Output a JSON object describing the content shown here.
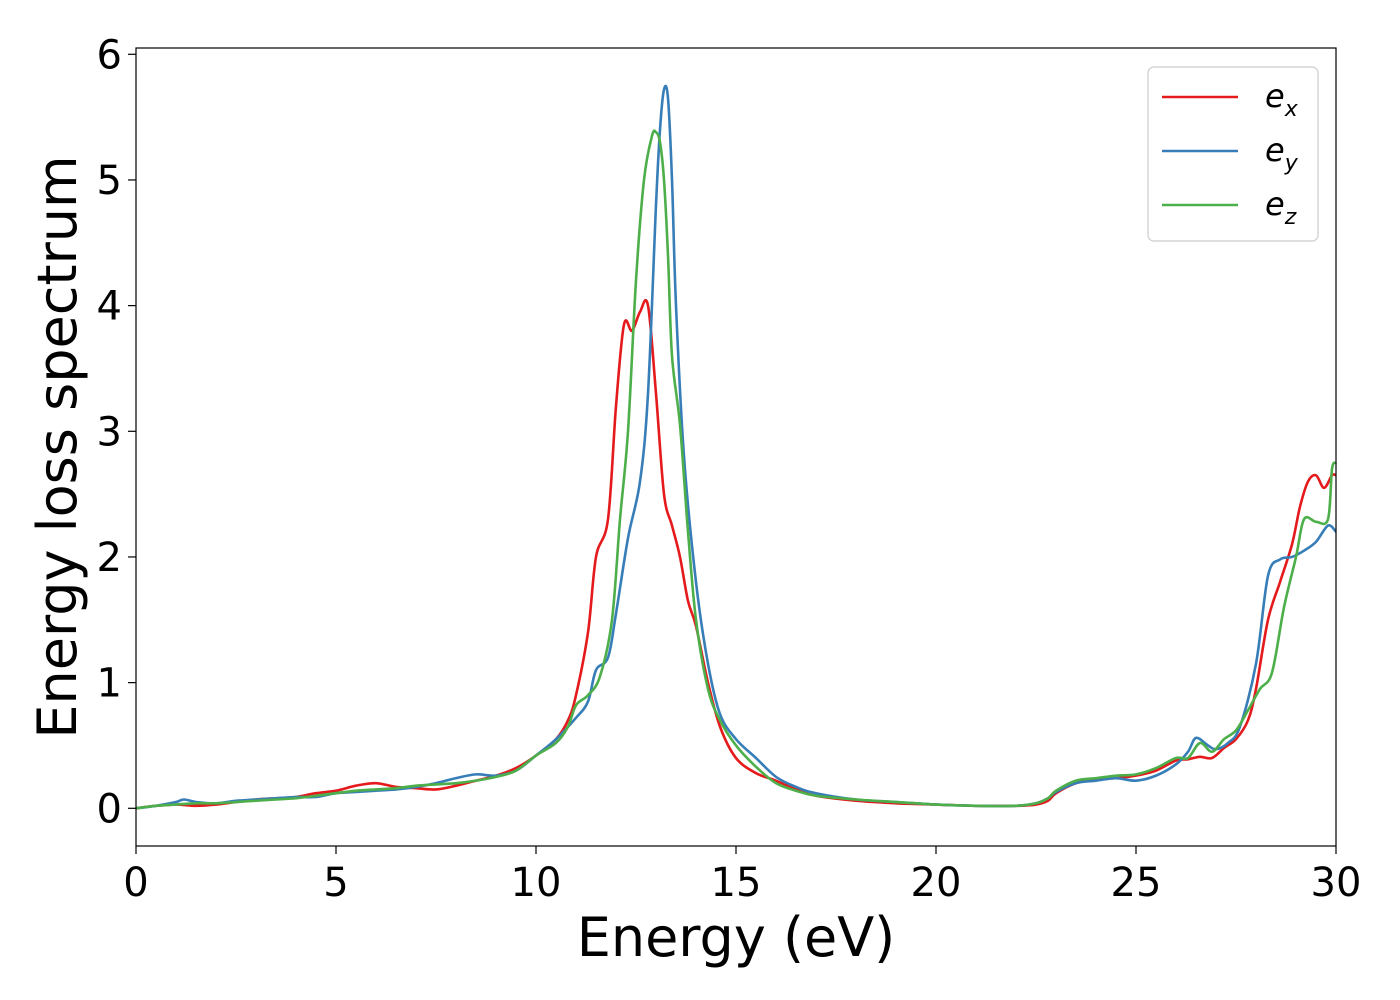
{
  "chart_data": {
    "type": "line",
    "xlabel": "Energy (eV)",
    "ylabel": "Energy loss spectrum",
    "xlim": [
      0,
      30
    ],
    "ylim": [
      -0.3,
      6.05
    ],
    "xticks": [
      0,
      5,
      10,
      15,
      20,
      25,
      30
    ],
    "yticks": [
      0,
      1,
      2,
      3,
      4,
      5,
      6
    ],
    "grid": false,
    "legend_position": "top-right",
    "series": [
      {
        "name": "e_x",
        "label_base": "e",
        "label_sub": "x",
        "color": "#e41a1c",
        "x": [
          0,
          0.5,
          1,
          1.5,
          2,
          2.5,
          3,
          3.5,
          4,
          4.5,
          5,
          5.5,
          6,
          6.5,
          7,
          7.5,
          8,
          8.5,
          9,
          9.5,
          10,
          10.5,
          10.8,
          11,
          11.3,
          11.5,
          11.8,
          12,
          12.2,
          12.4,
          12.6,
          12.8,
          13,
          13.2,
          13.4,
          13.6,
          13.8,
          14,
          14.3,
          14.6,
          15,
          15.5,
          16,
          16.5,
          17,
          18,
          19,
          20,
          21,
          22,
          22.5,
          22.8,
          23,
          23.5,
          24,
          24.5,
          25,
          25.5,
          26,
          26.3,
          26.6,
          26.9,
          27.2,
          27.5,
          27.8,
          28,
          28.3,
          28.6,
          28.9,
          29.1,
          29.3,
          29.5,
          29.7,
          29.9,
          30
        ],
        "y": [
          0,
          0.02,
          0.03,
          0.02,
          0.03,
          0.05,
          0.07,
          0.08,
          0.09,
          0.12,
          0.14,
          0.18,
          0.2,
          0.17,
          0.16,
          0.15,
          0.18,
          0.22,
          0.26,
          0.32,
          0.42,
          0.55,
          0.7,
          0.9,
          1.4,
          2.0,
          2.3,
          3.2,
          3.85,
          3.8,
          3.95,
          4.0,
          3.3,
          2.5,
          2.25,
          2.0,
          1.65,
          1.45,
          1.0,
          0.65,
          0.4,
          0.28,
          0.22,
          0.15,
          0.1,
          0.06,
          0.04,
          0.03,
          0.02,
          0.02,
          0.03,
          0.06,
          0.12,
          0.2,
          0.23,
          0.24,
          0.26,
          0.3,
          0.38,
          0.39,
          0.41,
          0.4,
          0.48,
          0.55,
          0.7,
          0.95,
          1.5,
          1.8,
          2.1,
          2.4,
          2.6,
          2.65,
          2.55,
          2.65,
          2.65
        ]
      },
      {
        "name": "e_y",
        "label_base": "e",
        "label_sub": "y",
        "color": "#377eb8",
        "x": [
          0,
          0.5,
          1,
          1.2,
          1.5,
          2,
          2.5,
          3,
          3.5,
          4,
          4.5,
          5,
          5.5,
          6,
          6.5,
          7,
          7.5,
          8,
          8.5,
          9,
          9.5,
          10,
          10.5,
          11,
          11.3,
          11.5,
          11.8,
          12,
          12.3,
          12.6,
          12.8,
          13,
          13.1,
          13.2,
          13.3,
          13.4,
          13.5,
          13.7,
          14,
          14.3,
          14.6,
          15,
          15.5,
          16,
          16.5,
          17,
          18,
          19,
          20,
          21,
          22,
          22.5,
          22.8,
          23,
          23.5,
          24,
          24.5,
          25,
          25.5,
          26,
          26.3,
          26.5,
          26.8,
          27,
          27.3,
          27.6,
          28,
          28.3,
          28.6,
          28.9,
          29.2,
          29.5,
          29.8,
          30
        ],
        "y": [
          0,
          0.02,
          0.05,
          0.07,
          0.05,
          0.04,
          0.06,
          0.07,
          0.08,
          0.09,
          0.09,
          0.12,
          0.13,
          0.14,
          0.15,
          0.17,
          0.2,
          0.24,
          0.27,
          0.26,
          0.3,
          0.42,
          0.55,
          0.72,
          0.85,
          1.1,
          1.2,
          1.55,
          2.15,
          2.6,
          3.3,
          4.8,
          5.4,
          5.72,
          5.65,
          5.0,
          4.0,
          2.8,
          1.8,
          1.15,
          0.75,
          0.55,
          0.4,
          0.25,
          0.17,
          0.12,
          0.07,
          0.05,
          0.03,
          0.02,
          0.02,
          0.04,
          0.08,
          0.13,
          0.2,
          0.22,
          0.24,
          0.22,
          0.26,
          0.35,
          0.45,
          0.56,
          0.5,
          0.47,
          0.52,
          0.65,
          1.15,
          1.85,
          1.98,
          2.0,
          2.05,
          2.12,
          2.25,
          2.2
        ]
      },
      {
        "name": "e_z",
        "label_base": "e",
        "label_sub": "z",
        "color": "#4daf4a",
        "x": [
          0,
          0.5,
          1,
          1.5,
          2,
          2.5,
          3,
          3.5,
          4,
          4.5,
          5,
          5.5,
          6,
          6.5,
          7,
          7.5,
          8,
          8.5,
          9,
          9.5,
          10,
          10.5,
          10.8,
          11,
          11.3,
          11.6,
          11.9,
          12.1,
          12.3,
          12.5,
          12.7,
          12.9,
          13,
          13.1,
          13.2,
          13.3,
          13.4,
          13.6,
          13.8,
          14,
          14.3,
          14.6,
          15,
          15.5,
          16,
          16.5,
          17,
          18,
          19,
          20,
          21,
          22,
          22.5,
          22.8,
          23,
          23.5,
          24,
          24.5,
          25,
          25.5,
          26,
          26.3,
          26.6,
          26.9,
          27.2,
          27.5,
          27.8,
          28.1,
          28.4,
          28.7,
          29,
          29.2,
          29.5,
          29.8,
          29.9,
          30
        ],
        "y": [
          0,
          0.02,
          0.03,
          0.04,
          0.04,
          0.05,
          0.06,
          0.07,
          0.08,
          0.1,
          0.12,
          0.14,
          0.15,
          0.16,
          0.18,
          0.19,
          0.2,
          0.22,
          0.25,
          0.3,
          0.42,
          0.52,
          0.65,
          0.82,
          0.9,
          1.05,
          1.5,
          2.3,
          3.0,
          4.2,
          5.0,
          5.35,
          5.38,
          5.3,
          5.0,
          4.4,
          3.6,
          3.05,
          2.2,
          1.5,
          0.95,
          0.7,
          0.5,
          0.33,
          0.2,
          0.14,
          0.1,
          0.07,
          0.05,
          0.03,
          0.02,
          0.02,
          0.04,
          0.08,
          0.14,
          0.22,
          0.24,
          0.26,
          0.27,
          0.32,
          0.4,
          0.4,
          0.52,
          0.45,
          0.55,
          0.62,
          0.78,
          0.95,
          1.08,
          1.6,
          2.0,
          2.3,
          2.28,
          2.3,
          2.7,
          2.75
        ]
      }
    ]
  }
}
